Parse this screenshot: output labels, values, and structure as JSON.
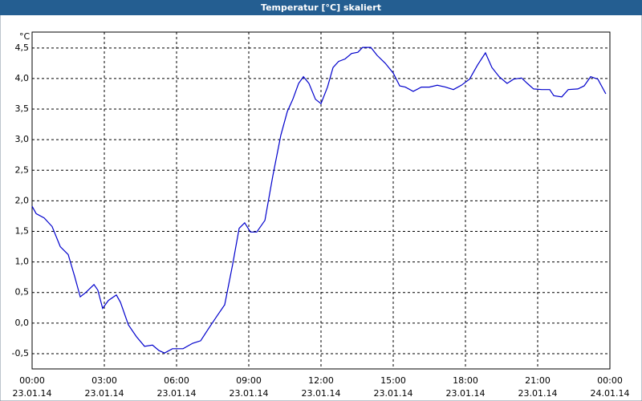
{
  "chart_data": {
    "type": "line",
    "title": "Temperatur [°C] skaliert",
    "y_unit": "°C",
    "color": "#0000cc",
    "grid": true,
    "x": [
      0,
      0.17,
      0.5,
      0.83,
      1.17,
      1.5,
      1.77,
      2,
      2.23,
      2.57,
      2.73,
      2.93,
      3.17,
      3.5,
      3.67,
      4,
      4.33,
      4.67,
      5,
      5.27,
      5.5,
      5.83,
      6.27,
      6.67,
      7,
      7.33,
      7.67,
      8,
      8.33,
      8.6,
      8.83,
      9.07,
      9.33,
      9.67,
      10,
      10.33,
      10.6,
      10.83,
      11.07,
      11.27,
      11.5,
      11.77,
      12,
      12.27,
      12.5,
      12.73,
      13,
      13.27,
      13.53,
      13.73,
      14.07,
      14.33,
      14.67,
      15,
      15.27,
      15.5,
      15.83,
      16.17,
      16.5,
      16.83,
      17.17,
      17.5,
      17.83,
      18.17,
      18.5,
      18.83,
      19.1,
      19.4,
      19.73,
      20,
      20.33,
      20.57,
      20.83,
      21.17,
      21.5,
      21.67,
      22,
      22.27,
      22.67,
      22.93,
      23.2,
      23.5,
      23.83
    ],
    "values": [
      1.91,
      1.79,
      1.72,
      1.58,
      1.25,
      1.12,
      0.76,
      0.43,
      0.5,
      0.63,
      0.54,
      0.24,
      0.37,
      0.46,
      0.34,
      -0.03,
      -0.22,
      -0.38,
      -0.36,
      -0.45,
      -0.49,
      -0.42,
      -0.42,
      -0.33,
      -0.29,
      -0.09,
      0.11,
      0.3,
      0.96,
      1.55,
      1.64,
      1.49,
      1.49,
      1.68,
      2.41,
      3.07,
      3.46,
      3.66,
      3.92,
      4.03,
      3.92,
      3.66,
      3.59,
      3.86,
      4.18,
      4.28,
      4.32,
      4.41,
      4.43,
      4.51,
      4.51,
      4.38,
      4.25,
      4.09,
      3.88,
      3.86,
      3.79,
      3.86,
      3.86,
      3.89,
      3.86,
      3.82,
      3.89,
      3.99,
      4.22,
      4.42,
      4.18,
      4.03,
      3.92,
      3.99,
      4.01,
      3.92,
      3.83,
      3.82,
      3.82,
      3.72,
      3.7,
      3.82,
      3.83,
      3.88,
      4.03,
      3.99,
      3.75
    ],
    "xlim": [
      0,
      24
    ],
    "xticks": [
      {
        "value": 0,
        "label": "00:00",
        "date": "23.01.14"
      },
      {
        "value": 3,
        "label": "03:00",
        "date": "23.01.14"
      },
      {
        "value": 6,
        "label": "06:00",
        "date": "23.01.14"
      },
      {
        "value": 9,
        "label": "09:00",
        "date": "23.01.14"
      },
      {
        "value": 12,
        "label": "12:00",
        "date": "23.01.14"
      },
      {
        "value": 15,
        "label": "15:00",
        "date": "23.01.14"
      },
      {
        "value": 18,
        "label": "18:00",
        "date": "23.01.14"
      },
      {
        "value": 21,
        "label": "21:00",
        "date": "23.01.14"
      },
      {
        "value": 24,
        "label": "00:00",
        "date": "24.01.14"
      }
    ],
    "ylim": [
      -0.75,
      4.76
    ],
    "yticks": [
      {
        "value": -0.5,
        "label": "-0,5"
      },
      {
        "value": 0,
        "label": "0,0"
      },
      {
        "value": 0.5,
        "label": "0,5"
      },
      {
        "value": 1,
        "label": "1,0"
      },
      {
        "value": 1.5,
        "label": "1,5"
      },
      {
        "value": 2,
        "label": "2,0"
      },
      {
        "value": 2.5,
        "label": "2,5"
      },
      {
        "value": 3,
        "label": "3,0"
      },
      {
        "value": 3.5,
        "label": "3,5"
      },
      {
        "value": 4,
        "label": "4,0"
      },
      {
        "value": 4.5,
        "label": "4,5"
      }
    ]
  }
}
